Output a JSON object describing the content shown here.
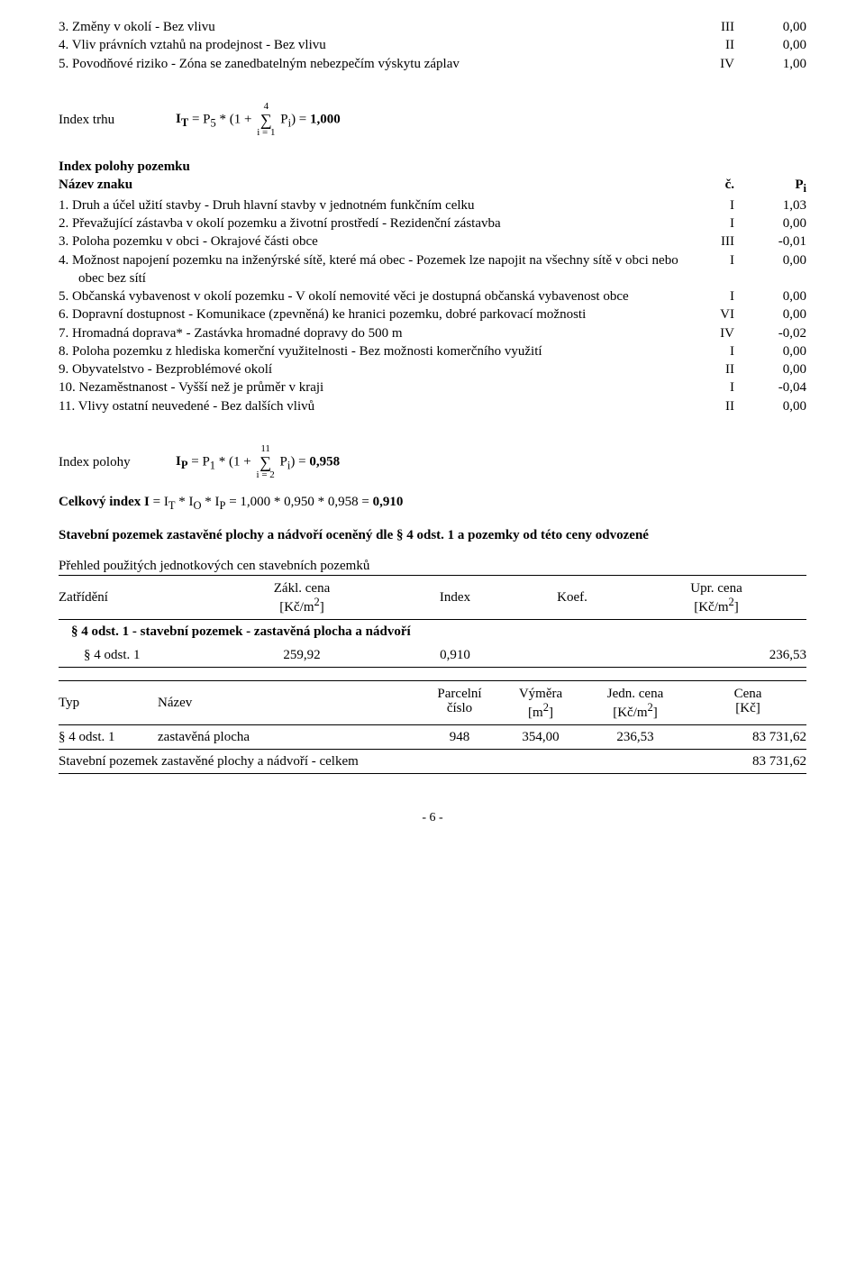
{
  "list1": [
    {
      "label": "3. Změny v okolí - Bez vlivu",
      "col2": "III",
      "col3": "0,00"
    },
    {
      "label": "4. Vliv právních vztahů na prodejnost - Bez vlivu",
      "col2": "II",
      "col3": "0,00"
    },
    {
      "label": "5. Povodňové riziko - Zóna se zanedbatelným nebezpečím výskytu záplav",
      "col2": "IV",
      "col3": "1,00"
    }
  ],
  "formula1": {
    "label": "Index trhu",
    "pre": "I",
    "sub1": "T",
    "mid1": " = P",
    "sub2": "5",
    "mid2": " * (1 + ",
    "sigma_top": "4",
    "sigma_bot": "i = 1",
    "mid3": " P",
    "sub3": "i",
    "mid4": ") = ",
    "result": "1,000"
  },
  "sec2_title": "Index polohy pozemku",
  "sec2_cols": {
    "name": "Název znaku",
    "c": "č.",
    "p": "P",
    "psub": "i"
  },
  "list2": [
    {
      "label": "1. Druh a účel užití stavby - Druh hlavní stavby v jednotném funkčním celku",
      "col2": "I",
      "col3": "1,03"
    },
    {
      "label": "2. Převažující zástavba v okolí pozemku a životní prostředí - Rezidenční zástavba",
      "col2": "I",
      "col3": "0,00"
    },
    {
      "label": "3. Poloha pozemku v obci - Okrajové části obce",
      "col2": "III",
      "col3": "-0,01"
    },
    {
      "label": "4. Možnost napojení pozemku na inženýrské sítě, které má obec - Pozemek lze napojit na všechny sítě v obci nebo obec bez sítí",
      "col2": "I",
      "col3": "0,00"
    },
    {
      "label": "5. Občanská vybavenost v okolí pozemku - V okolí nemovité věci je dostupná občanská vybavenost obce",
      "col2": "I",
      "col3": "0,00"
    },
    {
      "label": "6. Dopravní dostupnost - Komunikace (zpevněná) ke hranici pozemku, dobré parkovací možnosti",
      "col2": "VI",
      "col3": "0,00"
    },
    {
      "label": "7. Hromadná doprava* - Zastávka hromadné dopravy do 500 m",
      "col2": "IV",
      "col3": "-0,02"
    },
    {
      "label": "8. Poloha pozemku z hlediska komerční využitelnosti - Bez možnosti komerčního využití",
      "col2": "I",
      "col3": "0,00"
    },
    {
      "label": "9. Obyvatelstvo - Bezproblémové okolí",
      "col2": "II",
      "col3": "0,00"
    },
    {
      "label": "10. Nezaměstnanost - Vyšší než je průměr v kraji",
      "col2": "I",
      "col3": "-0,04"
    },
    {
      "label": "11. Vlivy ostatní neuvedené - Bez dalších vlivů",
      "col2": "II",
      "col3": "0,00"
    }
  ],
  "formula2": {
    "label": "Index polohy",
    "pre": "I",
    "sub1": "P",
    "mid1": " = P",
    "sub2": "1",
    "mid2": " * (1 + ",
    "sigma_top": "11",
    "sigma_bot": "i = 2",
    "mid3": " P",
    "sub3": "i",
    "mid4": ") = ",
    "result": "0,958"
  },
  "total_index": {
    "pre": "Celkový index I",
    "mid": " = I",
    "s1": "T",
    "m2": " * I",
    "s2": "O",
    "m3": " * I",
    "s3": "P",
    "m4": " = 1,000 * 0,950 * 0,958 = ",
    "res": "0,910"
  },
  "heading_bold": "Stavební pozemek zastavěné plochy a nádvoří oceněný dle § 4 odst. 1 a pozemky od této ceny odvozené",
  "subhead": "Přehled použitých jednotkových cen stavebních pozemků",
  "t1": {
    "h": {
      "zat": "Zatřídění",
      "zakl_t": "Zákl. cena",
      "zakl_b": "[Kč/m",
      "zakl_sup": "2",
      "zakl_e": "]",
      "idx": "Index",
      "koef": "Koef.",
      "upr_t": "Upr. cena",
      "upr_b": "[Kč/m",
      "upr_sup": "2",
      "upr_e": "]"
    },
    "group": "§ 4 odst. 1 - stavební pozemek - zastavěná plocha a nádvoří",
    "row": {
      "zat": "§ 4 odst. 1",
      "zakl": "259,92",
      "idx": "0,910",
      "koef": "",
      "upr": "236,53"
    }
  },
  "t2": {
    "h": {
      "typ": "Typ",
      "naz": "Název",
      "par_t": "Parcelní",
      "par_b": "číslo",
      "vym_t": "Výměra",
      "vym_b": "[m",
      "vym_sup": "2",
      "vym_e": "]",
      "jed_t": "Jedn. cena",
      "jed_b": "[Kč/m",
      "jed_sup": "2",
      "jed_e": "]",
      "cen_t": "Cena",
      "cen_b": "[Kč]"
    },
    "row": {
      "typ": "§ 4 odst. 1",
      "naz": "zastavěná plocha",
      "par": "948",
      "vym": "354,00",
      "jed": "236,53",
      "cen": "83 731,62"
    },
    "sum": {
      "label": "Stavební pozemek zastavěné plochy a nádvoří - celkem",
      "val": "83 731,62"
    }
  },
  "page": "- 6 -"
}
